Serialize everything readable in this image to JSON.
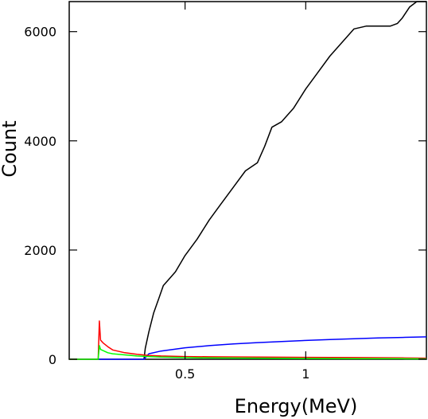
{
  "chart_data": {
    "type": "line",
    "title": "",
    "xlabel": "Energy(MeV)",
    "ylabel": "Count",
    "xlim": [
      0.02,
      1.5
    ],
    "ylim": [
      0,
      6550
    ],
    "x_ticks": [
      0.5,
      1
    ],
    "x_tick_labels": [
      "0.5",
      "1"
    ],
    "y_ticks": [
      0,
      2000,
      4000,
      6000
    ],
    "y_tick_labels": [
      "0",
      "2000",
      "4000",
      "6000"
    ],
    "grid": false,
    "legend": "none",
    "series": [
      {
        "color": "#000000",
        "x": [
          0.33,
          0.335,
          0.35,
          0.37,
          0.39,
          0.41,
          0.43,
          0.46,
          0.5,
          0.55,
          0.6,
          0.65,
          0.7,
          0.75,
          0.8,
          0.83,
          0.86,
          0.9,
          0.95,
          1.0,
          1.05,
          1.1,
          1.15,
          1.2,
          1.25,
          1.3,
          1.35,
          1.38,
          1.4,
          1.43,
          1.46,
          1.5
        ],
        "values": [
          0,
          200,
          500,
          850,
          1100,
          1350,
          1450,
          1600,
          1900,
          2200,
          2550,
          2850,
          3150,
          3450,
          3600,
          3900,
          4250,
          4350,
          4600,
          4950,
          5250,
          5550,
          5800,
          6050,
          6100,
          6100,
          6100,
          6150,
          6250,
          6450,
          6550,
          6550
        ]
      },
      {
        "color": "#0000ff",
        "x": [
          0.02,
          0.33,
          0.35,
          0.4,
          0.5,
          0.6,
          0.7,
          0.8,
          0.9,
          1.0,
          1.1,
          1.2,
          1.3,
          1.4,
          1.5
        ],
        "values": [
          0,
          0,
          100,
          150,
          210,
          250,
          280,
          305,
          325,
          345,
          360,
          375,
          390,
          400,
          410
        ]
      },
      {
        "color": "#ff0000",
        "x": [
          0.02,
          0.14,
          0.145,
          0.15,
          0.16,
          0.18,
          0.2,
          0.25,
          0.3,
          0.35,
          0.4,
          0.5,
          0.6,
          0.8,
          1.0,
          1.2,
          1.4,
          1.5
        ],
        "values": [
          0,
          0,
          700,
          350,
          300,
          230,
          170,
          120,
          90,
          70,
          60,
          50,
          45,
          40,
          35,
          30,
          25,
          20
        ]
      },
      {
        "color": "#00ff00",
        "x": [
          0.02,
          0.14,
          0.145,
          0.15,
          0.18,
          0.2,
          0.25,
          0.3,
          0.35,
          0.4,
          0.5,
          0.6,
          0.8,
          1.0,
          1.2,
          1.4,
          1.5
        ],
        "values": [
          0,
          0,
          250,
          180,
          120,
          100,
          80,
          60,
          50,
          40,
          30,
          25,
          20,
          15,
          12,
          10,
          8
        ]
      }
    ]
  }
}
